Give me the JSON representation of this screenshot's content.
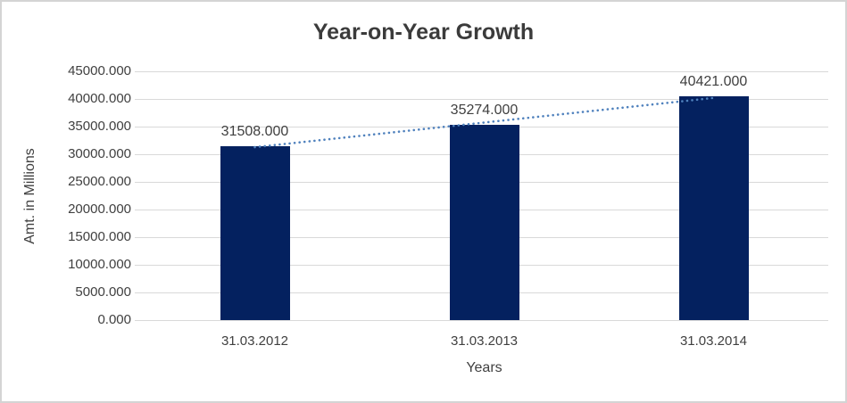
{
  "chart_data": {
    "type": "bar",
    "title": "Year-on-Year Growth",
    "xlabel": "Years",
    "ylabel": "Amt. in Millions",
    "categories": [
      "31.03.2012",
      "31.03.2013",
      "31.03.2014"
    ],
    "values": [
      31508,
      35274,
      40421
    ],
    "data_labels": [
      "31508.000",
      "35274.000",
      "40421.000"
    ],
    "ylim": [
      0,
      45000
    ],
    "ytick_step": 5000,
    "ytick_labels": [
      "0.000",
      "5000.000",
      "10000.000",
      "15000.000",
      "20000.000",
      "25000.000",
      "30000.000",
      "35000.000",
      "40000.000",
      "45000.000"
    ],
    "grid": true,
    "legend": "none",
    "trendline": {
      "type": "linear",
      "style": "dotted"
    },
    "colors": {
      "bar": "#04215F",
      "trendline": "#4F81BD",
      "gridline": "#D9D9D9",
      "text": "#404040",
      "title_text": "#3B3B3B"
    }
  }
}
